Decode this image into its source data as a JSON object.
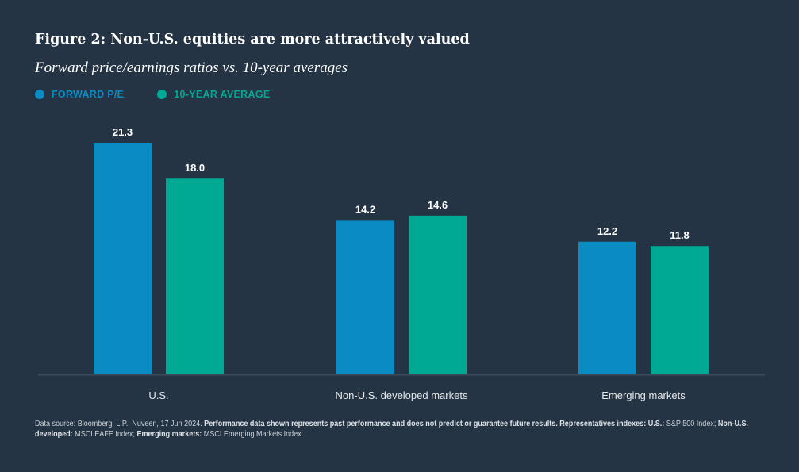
{
  "colors": {
    "background": "#253444",
    "forward_pe": "#0a8bc2",
    "ten_year_avg": "#00a993",
    "axis": "#3c4b5a",
    "label": "#e6e9ec"
  },
  "chart_data": {
    "type": "bar",
    "title": "Figure 2: Non-U.S. equities are more attractively valued",
    "subtitle": "Forward price/earnings ratios vs. 10-year averages",
    "categories": [
      "U.S.",
      "Non-U.S. developed markets",
      "Emerging markets"
    ],
    "series": [
      {
        "name": "FORWARD P/E",
        "values": [
          21.3,
          14.2,
          12.2
        ],
        "labels": [
          "21.3",
          "14.2",
          "12.2"
        ]
      },
      {
        "name": "10-YEAR AVERAGE",
        "values": [
          18.0,
          14.6,
          11.8
        ],
        "labels": [
          "18.0",
          "14.6",
          "11.8"
        ]
      }
    ],
    "xlabel": "",
    "ylabel": "",
    "ylim": [
      0,
      21.3
    ],
    "grid": false,
    "legend": "top-left"
  },
  "footnote": {
    "parts": [
      {
        "text": "Data source: Bloomberg, L.P., Nuveen, 17 Jun 2024. ",
        "bold": false
      },
      {
        "text": "Performance data shown represents past performance and does not predict or guarantee future results. Representatives indexes: U.S.:",
        "bold": true
      },
      {
        "text": " S&P 500 Index; ",
        "bold": false
      },
      {
        "text": "Non-U.S. developed:",
        "bold": true
      },
      {
        "text": " MSCI EAFE Index; ",
        "bold": false
      },
      {
        "text": "Emerging markets:",
        "bold": true
      },
      {
        "text": " MSCI Emerging Markets Index.",
        "bold": false
      }
    ]
  }
}
